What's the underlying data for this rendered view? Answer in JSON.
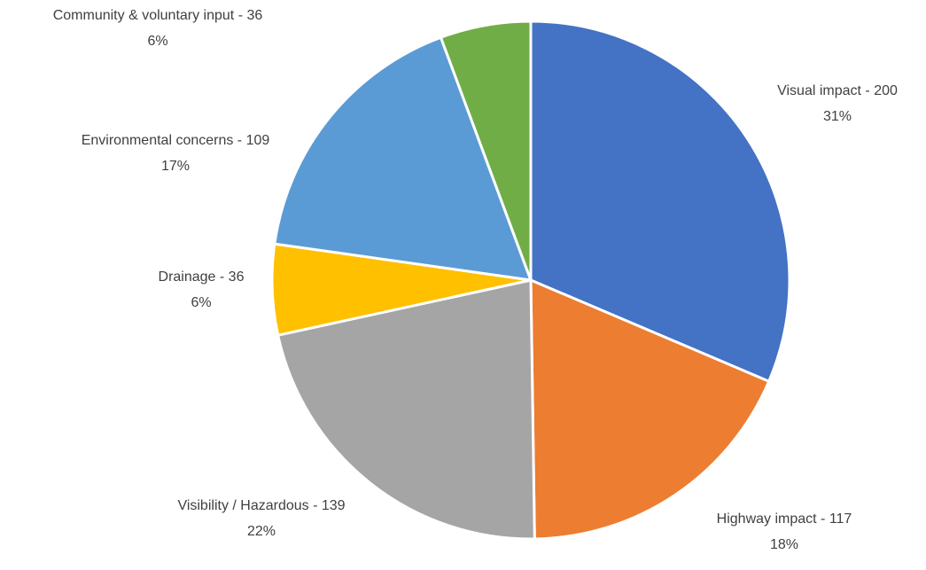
{
  "chart_data": {
    "type": "pie",
    "labels": [
      "Visual impact - 200",
      "Highway impact - 117",
      "Visibility / Hazardous - 139",
      "Drainage - 36",
      "Environmental concerns - 109",
      "Community & voluntary input - 36"
    ],
    "values": [
      200,
      117,
      139,
      36,
      109,
      36
    ],
    "percent_labels": [
      "31%",
      "18%",
      "22%",
      "6%",
      "17%",
      "6%"
    ],
    "colors": [
      "#4472c4",
      "#ed7d31",
      "#a5a5a5",
      "#ffc000",
      "#5b9bd5",
      "#70ad47"
    ]
  }
}
